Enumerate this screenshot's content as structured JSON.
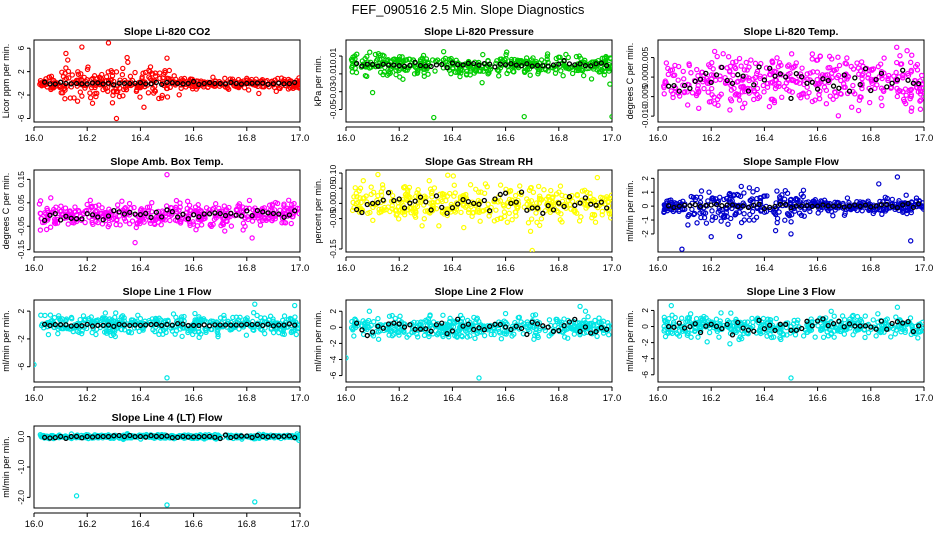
{
  "main_title": "FEF_090516  2.5 Min. Slope Diagnostics",
  "chart_data": [
    {
      "type": "scatter",
      "title": "Slope Li-820 CO2",
      "ylabel": "Licor ppm per min.",
      "color": "#ff0000",
      "xlim": [
        16.0,
        17.0
      ],
      "ylim": [
        -6.6,
        7.4
      ],
      "x_ticks": [
        "16.0",
        "16.2",
        "16.4",
        "16.6",
        "16.8",
        "17.0"
      ],
      "y_ticks": [
        -6,
        -2,
        2,
        6
      ],
      "y_tick_labels": [
        "-6",
        "-2",
        "2",
        "6"
      ],
      "noise": {
        "center": 0,
        "spread": 0.9,
        "n": 420,
        "extra_early": 2.6
      },
      "outliers": [
        [
          16.18,
          6.2
        ],
        [
          16.28,
          6.9
        ],
        [
          16.12,
          5.1
        ],
        [
          16.35,
          4.4
        ],
        [
          16.5,
          4.3
        ],
        [
          16.31,
          -6.0
        ],
        [
          16.22,
          -3.4
        ]
      ],
      "black_spread": 0.2
    },
    {
      "type": "scatter",
      "title": "Slope Li-820 Pressure",
      "ylabel": "kPa per min.",
      "color": "#00cc00",
      "xlim": [
        16.0,
        17.0
      ],
      "ylim": [
        -0.064,
        0.028
      ],
      "x_ticks": [
        "16.0",
        "16.2",
        "16.4",
        "16.6",
        "16.8",
        "17.0"
      ],
      "y_ticks": [
        -0.05,
        -0.03,
        -0.01,
        0.01
      ],
      "y_tick_labels": [
        "-0.05",
        "-0.03",
        "-0.01",
        "0.01"
      ],
      "noise": {
        "center": 0.0,
        "spread": 0.011,
        "n": 420,
        "extra_early": 0
      },
      "outliers": [
        [
          16.33,
          -0.059
        ],
        [
          16.67,
          -0.058
        ],
        [
          17.0,
          -0.058
        ],
        [
          16.1,
          -0.031
        ]
      ],
      "black_spread": 0.003
    },
    {
      "type": "scatter",
      "title": "Slope Li-820 Temp.",
      "ylabel": "degrees C per min.",
      "color": "#ff00ff",
      "xlim": [
        16.0,
        17.0
      ],
      "ylim": [
        -0.0115,
        0.0095
      ],
      "x_ticks": [
        "16.0",
        "16.2",
        "16.4",
        "16.6",
        "16.8",
        "17.0"
      ],
      "y_ticks": [
        -0.01,
        -0.005,
        0.0,
        0.005
      ],
      "y_tick_labels": [
        "-0.010",
        "-0.005",
        "0.000",
        "0.005"
      ],
      "noise": {
        "center": -0.001,
        "spread": 0.006,
        "n": 420,
        "extra_early": 0
      },
      "outliers": [],
      "black_spread": 0.004
    },
    {
      "type": "scatter",
      "title": "Slope Amb. Box Temp.",
      "ylabel": "degrees C per min.",
      "color": "#ff00ff",
      "xlim": [
        16.0,
        17.0
      ],
      "ylim": [
        -0.16,
        0.19
      ],
      "x_ticks": [
        "16.0",
        "16.2",
        "16.4",
        "16.6",
        "16.8",
        "17.0"
      ],
      "y_ticks": [
        -0.15,
        -0.05,
        0.05,
        0.15
      ],
      "y_tick_labels": [
        "-0.15",
        "-0.05",
        "0.05",
        "0.15"
      ],
      "noise": {
        "center": 0.0,
        "spread": 0.05,
        "n": 420,
        "extra_early": 0
      },
      "outliers": [
        [
          16.5,
          0.17
        ],
        [
          16.38,
          -0.12
        ],
        [
          16.82,
          -0.1
        ]
      ],
      "black_spread": 0.03
    },
    {
      "type": "scatter",
      "title": "Slope Gas Stream RH",
      "ylabel": "percent per min.",
      "color": "#ffff00",
      "xlim": [
        16.0,
        17.0
      ],
      "ylim": [
        -0.16,
        0.11
      ],
      "x_ticks": [
        "16.0",
        "16.2",
        "16.4",
        "16.6",
        "16.8",
        "17.0"
      ],
      "y_ticks": [
        -0.15,
        -0.05,
        0.0,
        0.05,
        0.1
      ],
      "y_tick_labels": [
        "-0.15",
        "-0.05",
        "0.00",
        "0.05",
        "0.10"
      ],
      "noise": {
        "center": 0.0,
        "spread": 0.05,
        "n": 420,
        "extra_early": 0
      },
      "outliers": [
        [
          16.7,
          -0.155
        ],
        [
          16.12,
          0.095
        ]
      ],
      "black_spread": 0.035
    },
    {
      "type": "scatter",
      "title": "Slope Sample Flow",
      "ylabel": "ml/min per min.",
      "color": "#0000cc",
      "xlim": [
        16.0,
        17.0
      ],
      "ylim": [
        -3.3,
        2.6
      ],
      "x_ticks": [
        "16.0",
        "16.2",
        "16.4",
        "16.6",
        "16.8",
        "17.0"
      ],
      "y_ticks": [
        -2,
        -1,
        0,
        1,
        2
      ],
      "y_tick_labels": [
        "-2",
        "-1",
        "0",
        "1",
        "2"
      ],
      "noise": {
        "center": 0.0,
        "spread": 0.45,
        "n": 420,
        "extra_early": 1.3
      },
      "outliers": [
        [
          16.09,
          -3.1
        ],
        [
          16.5,
          -2.0
        ],
        [
          16.9,
          2.1
        ],
        [
          16.95,
          -2.5
        ],
        [
          16.2,
          -2.2
        ],
        [
          16.83,
          1.6
        ]
      ],
      "black_spread": 0.15
    },
    {
      "type": "scatter",
      "title": "Slope Line 1 Flow",
      "ylabel": "ml/min per min.",
      "color": "#00e5e5",
      "xlim": [
        16.0,
        17.0
      ],
      "ylim": [
        -8.2,
        3.6
      ],
      "x_ticks": [
        "16.0",
        "16.2",
        "16.4",
        "16.6",
        "16.8",
        "17.0"
      ],
      "y_ticks": [
        -6,
        -2,
        2
      ],
      "y_tick_labels": [
        "-6",
        "-2",
        "2"
      ],
      "noise": {
        "center": 0.0,
        "spread": 1.3,
        "n": 420,
        "extra_early": 0
      },
      "outliers": [
        [
          16.0,
          -5.7
        ],
        [
          16.5,
          -7.6
        ],
        [
          16.98,
          2.8
        ],
        [
          16.83,
          3.0
        ]
      ],
      "black_spread": 0.15
    },
    {
      "type": "scatter",
      "title": "Slope Line 2 Flow",
      "ylabel": "ml/min per min.",
      "color": "#00e5e5",
      "xlim": [
        16.0,
        17.0
      ],
      "ylim": [
        -6.8,
        3.4
      ],
      "x_ticks": [
        "16.0",
        "16.2",
        "16.4",
        "16.6",
        "16.8",
        "17.0"
      ],
      "y_ticks": [
        -6,
        -4,
        -2,
        0,
        2
      ],
      "y_tick_labels": [
        "-6",
        "-4",
        "-2",
        "0",
        "2"
      ],
      "noise": {
        "center": 0.0,
        "spread": 1.2,
        "n": 420,
        "extra_early": 0
      },
      "outliers": [
        [
          16.5,
          -6.3
        ],
        [
          16.0,
          -3.8
        ],
        [
          16.88,
          2.6
        ]
      ],
      "black_spread": 0.9
    },
    {
      "type": "scatter",
      "title": "Slope Line 3 Flow",
      "ylabel": "ml/min per min.",
      "color": "#00e5e5",
      "xlim": [
        16.0,
        17.0
      ],
      "ylim": [
        -6.9,
        3.3
      ],
      "x_ticks": [
        "16.0",
        "16.2",
        "16.4",
        "16.6",
        "16.8",
        "17.0"
      ],
      "y_ticks": [
        -6,
        -4,
        -2,
        0,
        2
      ],
      "y_tick_labels": [
        "-6",
        "-4",
        "-2",
        "0",
        "2"
      ],
      "noise": {
        "center": 0.0,
        "spread": 1.2,
        "n": 420,
        "extra_early": 0
      },
      "outliers": [
        [
          16.5,
          -6.4
        ],
        [
          16.05,
          2.6
        ],
        [
          16.9,
          2.4
        ]
      ],
      "black_spread": 0.9
    },
    {
      "type": "scatter",
      "title": "Slope Line 4 (LT) Flow",
      "ylabel": "ml/min per min.",
      "color": "#00e5e5",
      "xlim": [
        16.0,
        17.0
      ],
      "ylim": [
        -2.35,
        0.35
      ],
      "x_ticks": [
        "16.0",
        "16.2",
        "16.4",
        "16.6",
        "16.8",
        "17.0"
      ],
      "y_ticks": [
        -2.0,
        -1.0,
        0.0
      ],
      "y_tick_labels": [
        "-2.0",
        "-1.0",
        "0.0"
      ],
      "noise": {
        "center": 0.0,
        "spread": 0.06,
        "n": 420,
        "extra_early": 0
      },
      "outliers": [
        [
          16.16,
          -1.95
        ],
        [
          16.5,
          -2.25
        ],
        [
          16.83,
          -2.15
        ]
      ],
      "black_spread": 0.05
    }
  ]
}
